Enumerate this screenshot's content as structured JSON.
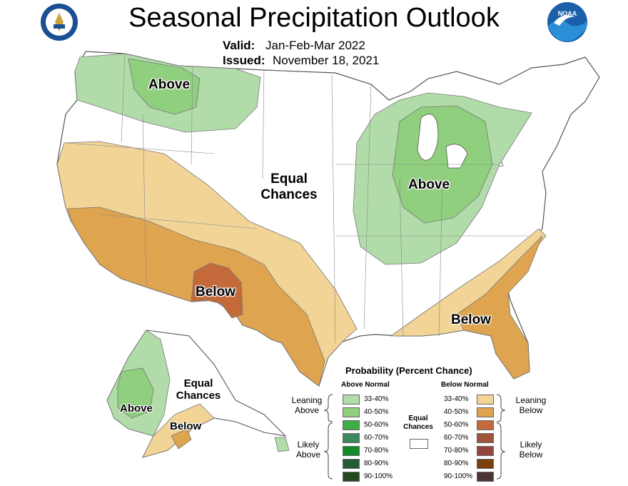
{
  "title": "Seasonal Precipitation Outlook",
  "valid_label": "Valid:",
  "valid_value": "Jan-Feb-Mar 2022",
  "issued_label": "Issued:",
  "issued_value": "November 18, 2021",
  "logos": {
    "left": "doc-seal-icon",
    "right": "noaa-logo-icon"
  },
  "map_labels": {
    "above_nw": "Above",
    "above_ne": "Above",
    "equal_line1": "Equal",
    "equal_line2": "Chances",
    "below_sw": "Below",
    "below_se": "Below",
    "ak_equal_line1": "Equal",
    "ak_equal_line2": "Chances",
    "ak_above": "Above",
    "ak_below": "Below"
  },
  "legend": {
    "title": "Probability (Percent Chance)",
    "above_header": "Above Normal",
    "below_header": "Below Normal",
    "equal_line1": "Equal",
    "equal_line2": "Chances",
    "leaning_above_1": "Leaning",
    "leaning_above_2": "Above",
    "likely_above_1": "Likely",
    "likely_above_2": "Above",
    "leaning_below_1": "Leaning",
    "leaning_below_2": "Below",
    "likely_below_1": "Likely",
    "likely_below_2": "Below",
    "above": [
      {
        "range": "33-40%",
        "color": "#b1dca9"
      },
      {
        "range": "40-50%",
        "color": "#8fcf7e"
      },
      {
        "range": "50-60%",
        "color": "#3fae45"
      },
      {
        "range": "60-70%",
        "color": "#3a8a5e"
      },
      {
        "range": "70-80%",
        "color": "#128a2a"
      },
      {
        "range": "80-90%",
        "color": "#275c3b"
      },
      {
        "range": "90-100%",
        "color": "#234a1d"
      }
    ],
    "below": [
      {
        "range": "33-40%",
        "color": "#f2d596"
      },
      {
        "range": "40-50%",
        "color": "#dea450"
      },
      {
        "range": "50-60%",
        "color": "#c4693a"
      },
      {
        "range": "60-70%",
        "color": "#a2543a"
      },
      {
        "range": "70-80%",
        "color": "#93463e"
      },
      {
        "range": "80-90%",
        "color": "#7a3f0d"
      },
      {
        "range": "90-100%",
        "color": "#4b3632"
      }
    ],
    "equal_color": "#ffffff"
  }
}
